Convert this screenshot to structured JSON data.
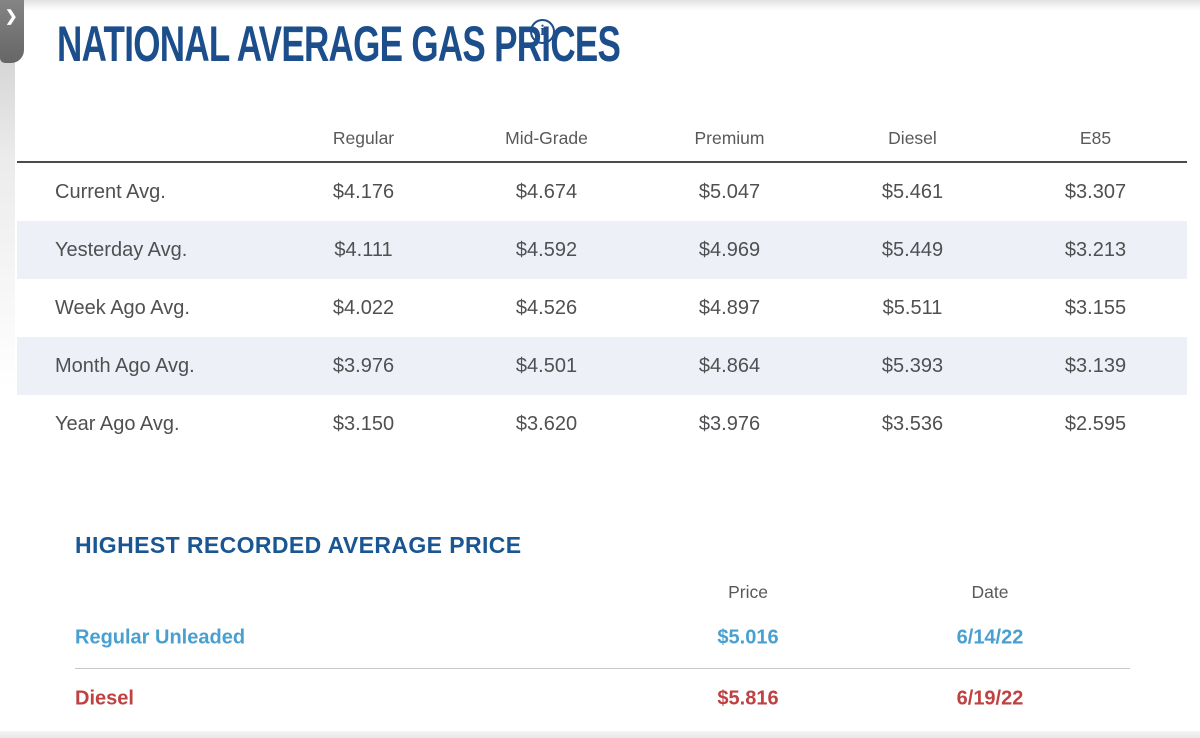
{
  "page": {
    "title": "NATIONAL AVERAGE GAS PRICES",
    "info_glyph": "i"
  },
  "collapse_tab": {
    "chevron": "❯"
  },
  "colors": {
    "title_navy": "#1d4e8c",
    "section_heading_blue": "#195692",
    "row_stripe": "#edf0f6",
    "header_gray": "#59595b",
    "body_gray": "#4f5052",
    "regular_unleaded_blue": "#49a0d0",
    "diesel_red": "#bf4141",
    "tab_gray": "#6e6e6e"
  },
  "gas_table": {
    "columns": [
      "Regular",
      "Mid-Grade",
      "Premium",
      "Diesel",
      "E85"
    ],
    "rows": [
      {
        "label": "Current Avg.",
        "values": [
          "$4.176",
          "$4.674",
          "$5.047",
          "$5.461",
          "$3.307"
        ]
      },
      {
        "label": "Yesterday Avg.",
        "values": [
          "$4.111",
          "$4.592",
          "$4.969",
          "$5.449",
          "$3.213"
        ]
      },
      {
        "label": "Week Ago Avg.",
        "values": [
          "$4.022",
          "$4.526",
          "$4.897",
          "$5.511",
          "$3.155"
        ]
      },
      {
        "label": "Month Ago Avg.",
        "values": [
          "$3.976",
          "$4.501",
          "$4.864",
          "$5.393",
          "$3.139"
        ]
      },
      {
        "label": "Year Ago Avg.",
        "values": [
          "$3.150",
          "$3.620",
          "$3.976",
          "$3.536",
          "$2.595"
        ]
      }
    ]
  },
  "highest_recorded": {
    "heading": "HIGHEST RECORDED AVERAGE PRICE",
    "columns": {
      "price": "Price",
      "date": "Date"
    },
    "rows": [
      {
        "label": "Regular Unleaded",
        "price": "$5.016",
        "date": "6/14/22"
      },
      {
        "label": "Diesel",
        "price": "$5.816",
        "date": "6/19/22"
      }
    ]
  }
}
